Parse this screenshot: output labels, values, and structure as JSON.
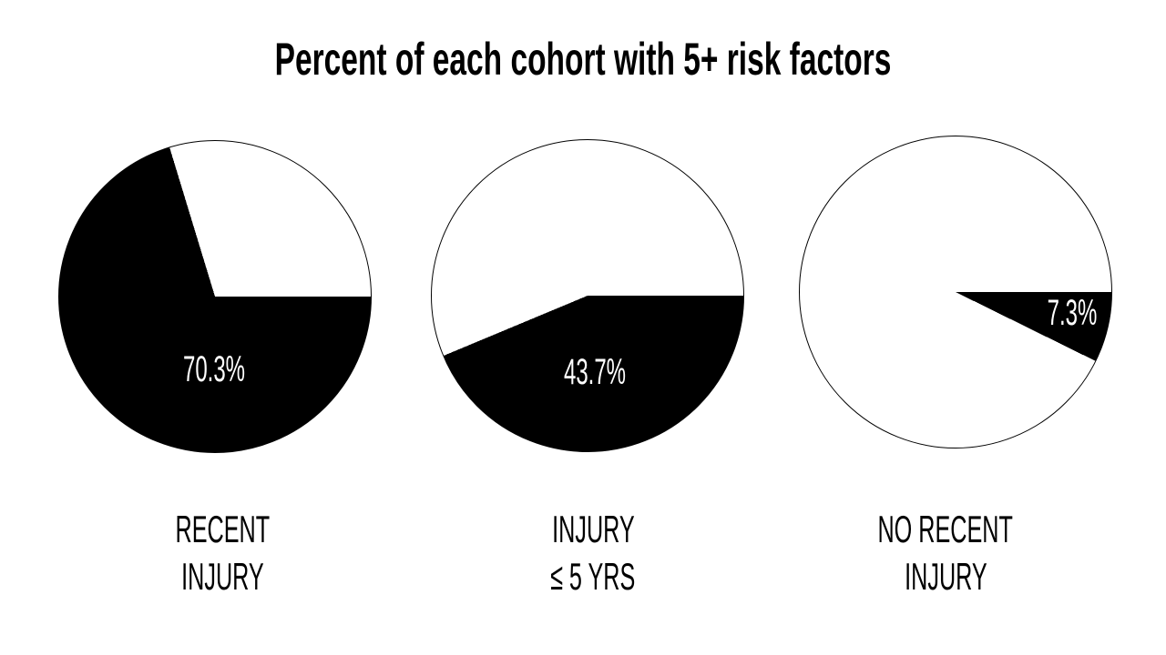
{
  "page": {
    "background_color": "#ffffff",
    "foreground_color": "#000000",
    "pie_fill_color": "#000000",
    "pie_empty_color": "#ffffff",
    "pie_outline_color": "#000000"
  },
  "chart_title": "Percent of each cohort with 5+ risk factors",
  "chart_data": [
    {
      "type": "pie",
      "cohort_label_lines": [
        "RECENT",
        "INJURY"
      ],
      "slices": [
        {
          "value": 70.3,
          "color": "#000000"
        },
        {
          "value": 29.7,
          "color": "#ffffff"
        }
      ],
      "data_label": "70.3%",
      "layout": {
        "start_angle_deg_from_top": 90,
        "sweep": "clockwise",
        "legend": "none"
      }
    },
    {
      "type": "pie",
      "cohort_label_lines": [
        "INJURY",
        "≤ 5 YRS"
      ],
      "slices": [
        {
          "value": 43.7,
          "color": "#000000"
        },
        {
          "value": 56.3,
          "color": "#ffffff"
        }
      ],
      "data_label": "43.7%",
      "layout": {
        "start_angle_deg_from_top": 90,
        "sweep": "clockwise",
        "legend": "none"
      }
    },
    {
      "type": "pie",
      "cohort_label_lines": [
        "NO RECENT",
        "INJURY"
      ],
      "slices": [
        {
          "value": 7.3,
          "color": "#000000"
        },
        {
          "value": 92.7,
          "color": "#ffffff"
        }
      ],
      "data_label": "7.3%",
      "layout": {
        "start_angle_deg_from_top": 90,
        "sweep": "clockwise",
        "legend": "none"
      }
    }
  ]
}
